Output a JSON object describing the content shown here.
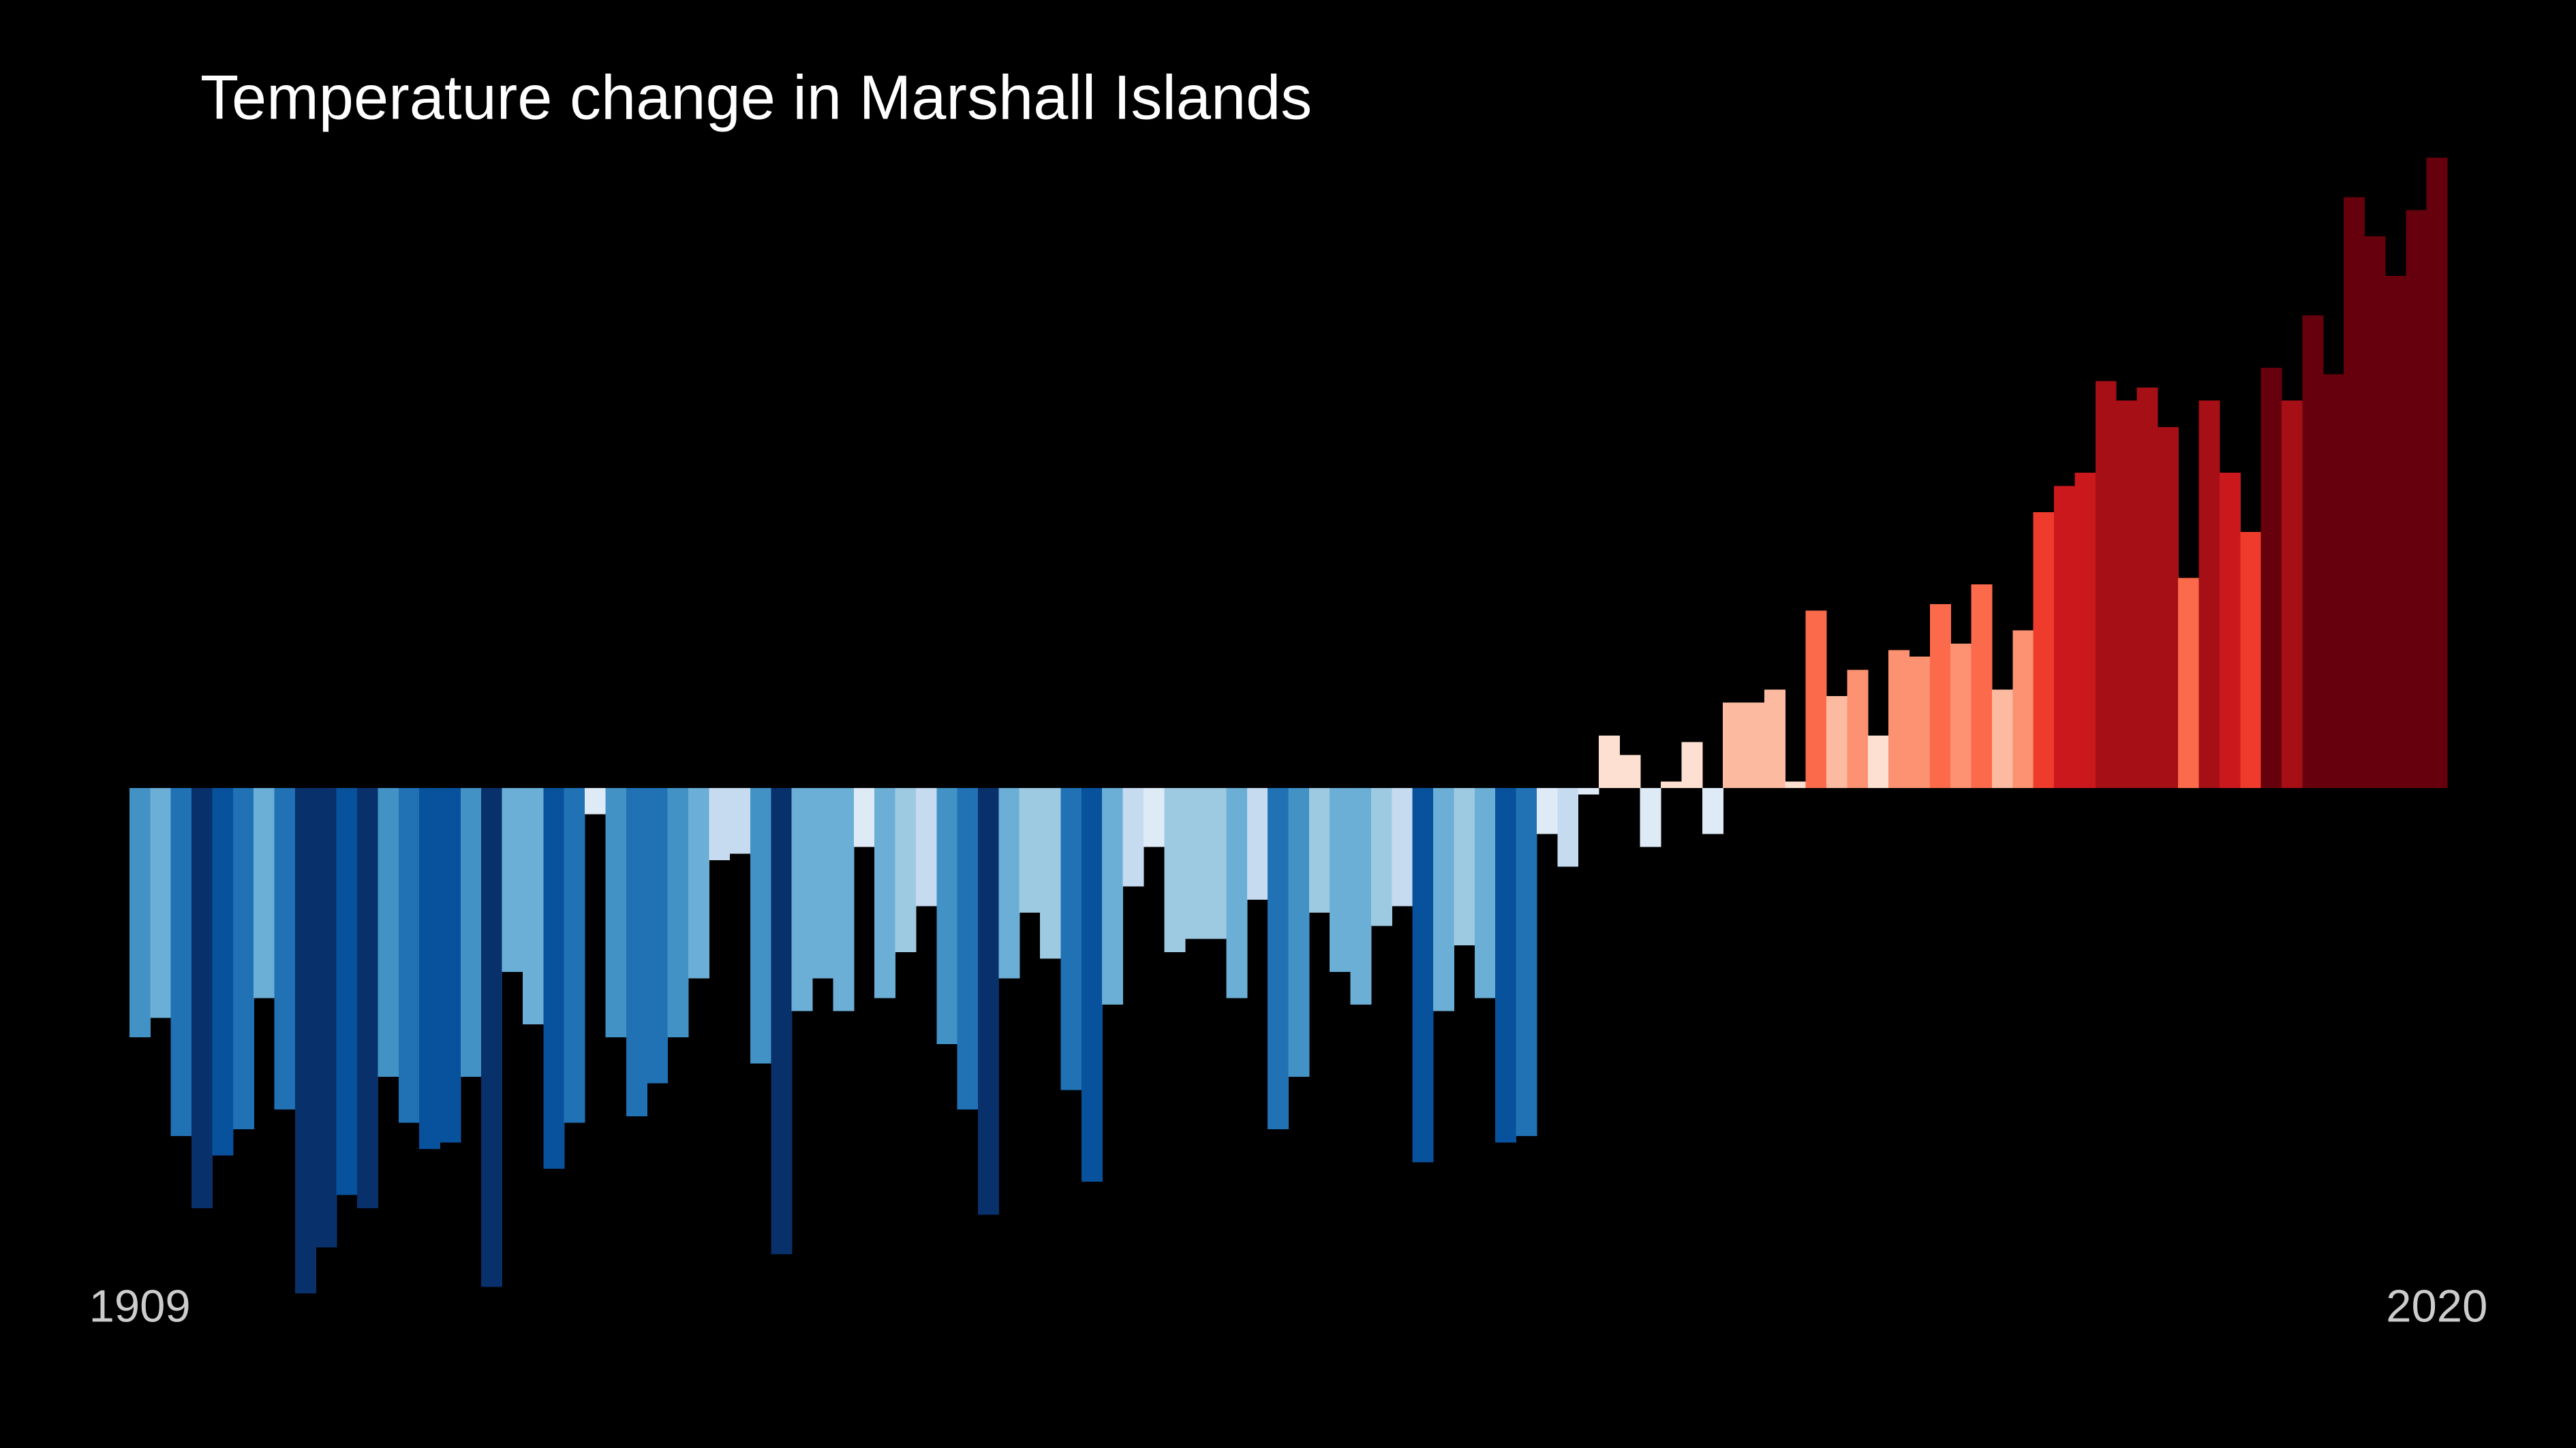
{
  "chart_data": {
    "type": "bar",
    "title": "Temperature change in Marshall Islands",
    "categories": [
      "1909",
      null,
      null,
      null,
      null,
      null,
      null,
      null,
      null,
      null,
      null,
      null,
      null,
      null,
      null,
      null,
      null,
      null,
      null,
      null,
      null,
      null,
      null,
      null,
      null,
      null,
      null,
      null,
      null,
      null,
      null,
      null,
      null,
      null,
      null,
      null,
      null,
      null,
      null,
      null,
      null,
      null,
      null,
      null,
      null,
      null,
      null,
      null,
      null,
      null,
      null,
      null,
      null,
      null,
      null,
      null,
      null,
      null,
      null,
      null,
      null,
      null,
      null,
      null,
      null,
      null,
      null,
      null,
      null,
      null,
      null,
      null,
      null,
      null,
      null,
      null,
      null,
      null,
      null,
      null,
      null,
      null,
      null,
      null,
      null,
      null,
      null,
      null,
      null,
      null,
      null,
      null,
      null,
      null,
      null,
      null,
      null,
      null,
      null,
      null,
      null,
      null,
      null,
      null,
      null,
      null,
      null,
      null,
      null,
      null,
      null,
      "2020"
    ],
    "values": [
      -0.38,
      -0.35,
      -0.53,
      -0.64,
      -0.56,
      -0.52,
      -0.32,
      -0.49,
      -0.77,
      -0.7,
      -0.62,
      -0.64,
      -0.44,
      -0.51,
      -0.55,
      -0.54,
      -0.44,
      -0.76,
      -0.28,
      -0.36,
      -0.58,
      -0.51,
      -0.04,
      -0.38,
      -0.5,
      -0.45,
      -0.38,
      -0.29,
      -0.11,
      -0.1,
      -0.42,
      -0.71,
      -0.34,
      -0.29,
      -0.34,
      -0.09,
      -0.32,
      -0.25,
      -0.18,
      -0.39,
      -0.49,
      -0.65,
      -0.29,
      -0.19,
      -0.26,
      -0.46,
      -0.6,
      -0.33,
      -0.15,
      -0.09,
      -0.25,
      -0.23,
      -0.23,
      -0.32,
      -0.17,
      -0.52,
      -0.44,
      -0.19,
      -0.28,
      -0.33,
      -0.21,
      -0.18,
      -0.57,
      -0.34,
      -0.24,
      -0.32,
      -0.54,
      -0.53,
      -0.07,
      -0.12,
      -0.01,
      0.08,
      0.05,
      -0.09,
      0.01,
      0.07,
      -0.07,
      0.13,
      0.13,
      0.15,
      0.01,
      0.27,
      0.14,
      0.18,
      0.08,
      0.21,
      0.2,
      0.28,
      0.22,
      0.31,
      0.15,
      0.24,
      0.42,
      0.46,
      0.48,
      0.62,
      0.59,
      0.61,
      0.55,
      0.32,
      0.59,
      0.48,
      0.39,
      0.64,
      0.59,
      0.72,
      0.63,
      0.9,
      0.84,
      0.78,
      0.88,
      0.96
    ],
    "colormap": [
      "#08306b",
      "#08519c",
      "#2171b5",
      "#4292c6",
      "#6baed6",
      "#9ecae1",
      "#c6dbef",
      "#deebf7",
      "#fee0d2",
      "#fcbba1",
      "#fc9272",
      "#fb6a4a",
      "#ef3b2c",
      "#cb181d",
      "#a50f15",
      "#67000d"
    ],
    "clim": [
      -0.72,
      0.72
    ],
    "ylim": [
      -0.8,
      1.0
    ]
  }
}
